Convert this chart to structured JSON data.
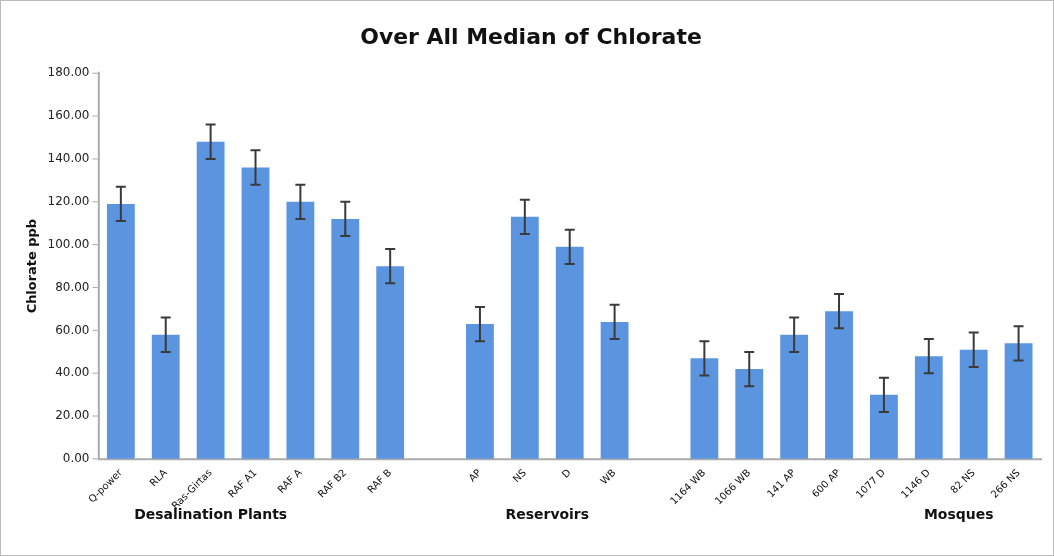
{
  "chart_data": {
    "type": "bar",
    "title": "Over All Median of Chlorate",
    "ylabel": "Chlorate ppb",
    "categories": [
      "Q-power",
      "RLA",
      "Ras-Girtas",
      "RAF A1",
      "RAF A",
      "RAF B2",
      "RAF B",
      null,
      "AP",
      "NS",
      "D",
      "WB",
      null,
      "1164 WB",
      "1066 WB",
      "141 AP",
      "600 AP",
      "1077 D",
      "1146 D",
      "82 NS",
      "266 NS"
    ],
    "values": [
      119,
      58,
      148,
      136,
      120,
      112,
      90,
      null,
      63,
      113,
      99,
      64,
      null,
      47,
      42,
      58,
      69,
      30,
      48,
      51,
      54
    ],
    "errors": [
      8,
      8,
      8,
      8,
      8,
      8,
      8,
      null,
      8,
      8,
      8,
      8,
      null,
      8,
      8,
      8,
      8,
      8,
      8,
      8,
      8
    ],
    "color": "#5b95e0",
    "ylim": [
      0,
      180
    ],
    "yticks": [
      {
        "value": 0,
        "label": "0.00"
      },
      {
        "value": 20,
        "label": "20.00"
      },
      {
        "value": 40,
        "label": "40.00"
      },
      {
        "value": 60,
        "label": "60.00"
      },
      {
        "value": 80,
        "label": "80.00"
      },
      {
        "value": 100,
        "label": "100.00"
      },
      {
        "value": 120,
        "label": "120.00"
      },
      {
        "value": 140,
        "label": "140.00"
      },
      {
        "value": 160,
        "label": "160.00"
      },
      {
        "value": 180,
        "label": "180.00"
      }
    ],
    "annotations": [
      "Desalination Plants",
      "Reservoirs",
      "Mosques"
    ],
    "grid": false,
    "legend": false
  }
}
